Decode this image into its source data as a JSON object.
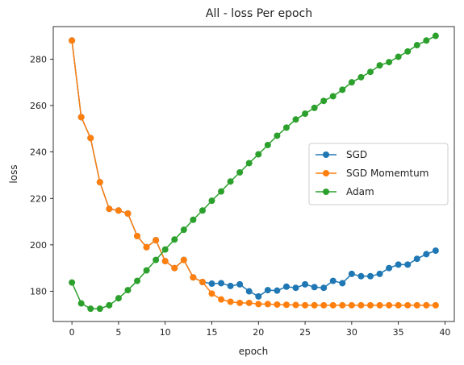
{
  "chart_data": {
    "type": "line",
    "title": "All - loss Per epoch",
    "xlabel": "epoch",
    "ylabel": "loss",
    "xlim": [
      -2,
      41
    ],
    "ylim": [
      167,
      294
    ],
    "xticks": [
      0,
      5,
      10,
      15,
      20,
      25,
      30,
      35,
      40
    ],
    "yticks": [
      180,
      200,
      220,
      240,
      260,
      280
    ],
    "grid": false,
    "legend_position": "center-right",
    "x": [
      0,
      1,
      2,
      3,
      4,
      5,
      6,
      7,
      8,
      9,
      10,
      11,
      12,
      13,
      14,
      15,
      16,
      17,
      18,
      19,
      20,
      21,
      22,
      23,
      24,
      25,
      26,
      27,
      28,
      29,
      30,
      31,
      32,
      33,
      34,
      35,
      36,
      37,
      38,
      39
    ],
    "series": [
      {
        "name": "SGD",
        "color": "#1f77b4",
        "values": [
          288.0,
          255.0,
          246.0,
          227.0,
          215.5,
          214.8,
          213.5,
          203.8,
          199.0,
          202.0,
          193.0,
          190.0,
          193.5,
          186.0,
          184.0,
          183.3,
          183.5,
          182.3,
          183.0,
          180.0,
          177.8,
          180.5,
          180.3,
          182.0,
          181.5,
          183.0,
          181.8,
          181.5,
          184.5,
          183.5,
          187.5,
          186.5,
          186.5,
          187.5,
          190.0,
          191.5,
          191.5,
          194.0,
          196.0,
          197.5
        ]
      },
      {
        "name": "SGD Momemtum",
        "color": "#ff7f0e",
        "values": [
          288.0,
          255.0,
          246.0,
          227.0,
          215.5,
          214.8,
          213.5,
          203.8,
          199.0,
          202.0,
          193.0,
          190.0,
          193.5,
          186.0,
          184.0,
          179.0,
          176.5,
          175.5,
          175.0,
          175.0,
          174.5,
          174.5,
          174.3,
          174.2,
          174.1,
          174.0,
          174.0,
          174.0,
          174.0,
          174.0,
          174.0,
          174.0,
          174.0,
          174.0,
          174.0,
          174.0,
          174.0,
          174.0,
          174.0,
          174.0
        ]
      },
      {
        "name": "Adam",
        "color": "#2ca02c",
        "values": [
          183.8,
          174.8,
          172.5,
          172.5,
          174.0,
          177.0,
          180.5,
          184.5,
          189.0,
          193.5,
          198.0,
          202.3,
          206.5,
          210.8,
          214.8,
          219.0,
          223.0,
          227.3,
          231.2,
          235.2,
          239.0,
          243.0,
          247.0,
          250.5,
          254.0,
          256.5,
          259.0,
          262.0,
          264.0,
          266.8,
          270.0,
          272.2,
          274.5,
          277.3,
          278.7,
          281.0,
          283.3,
          286.0,
          288.0,
          290.0
        ]
      }
    ]
  }
}
